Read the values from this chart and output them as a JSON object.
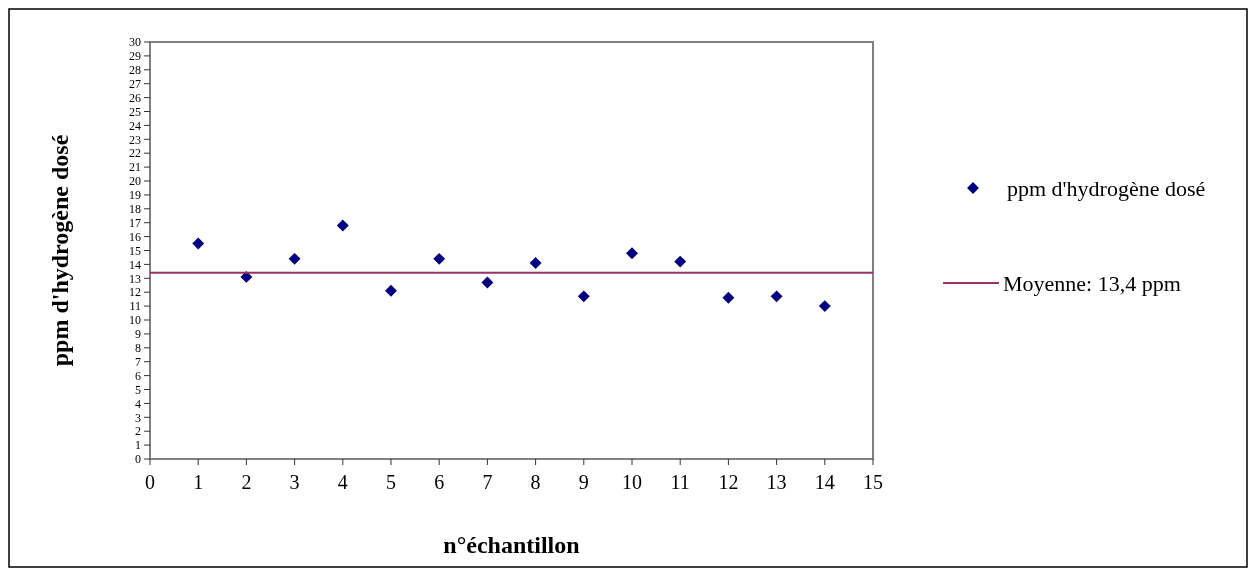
{
  "chart_data": {
    "type": "scatter",
    "xlabel": "n°échantillon",
    "ylabel": "ppm d'hydrogène dosé",
    "x": [
      1,
      2,
      3,
      4,
      5,
      6,
      7,
      8,
      9,
      10,
      11,
      12,
      13,
      14
    ],
    "series": [
      {
        "name": "ppm d'hydrogène dosé",
        "color": "#000080",
        "marker": "diamond",
        "values": [
          15.5,
          13.1,
          14.4,
          16.8,
          12.1,
          14.4,
          12.7,
          14.1,
          11.7,
          14.8,
          14.2,
          11.6,
          11.7,
          11.0
        ]
      },
      {
        "name": "Moyenne: 13,4 ppm",
        "type": "line",
        "color": "#993366",
        "x": [
          0,
          15
        ],
        "values": [
          13.4,
          13.4
        ]
      }
    ],
    "xlim": [
      0,
      15
    ],
    "xticks": [
      0,
      1,
      2,
      3,
      4,
      5,
      6,
      7,
      8,
      9,
      10,
      11,
      12,
      13,
      14,
      15
    ],
    "ylim": [
      0,
      30
    ],
    "yticks": [
      0,
      1,
      2,
      3,
      4,
      5,
      6,
      7,
      8,
      9,
      10,
      11,
      12,
      13,
      14,
      15,
      16,
      17,
      18,
      19,
      20,
      21,
      22,
      23,
      24,
      25,
      26,
      27,
      28,
      29,
      30
    ],
    "grid": false,
    "legend": "right"
  }
}
